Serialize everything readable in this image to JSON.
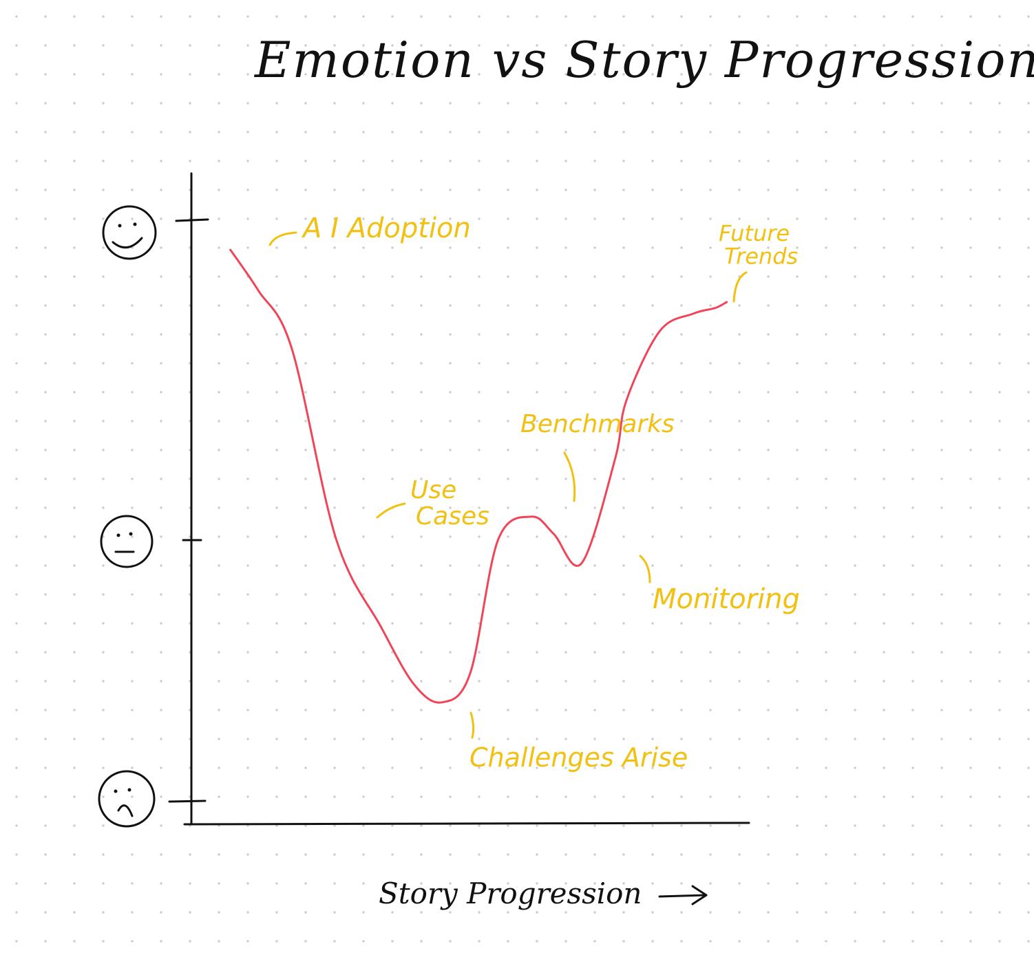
{
  "chart_data": {
    "type": "line",
    "title": "Emotion vs Story Progression",
    "xlabel": "Story Progression",
    "ylabel": "",
    "y_scale": [
      "sad-face-icon",
      "neutral-face-icon",
      "happy-face-icon"
    ],
    "ylim": [
      0,
      100
    ],
    "xlim": [
      0,
      100
    ],
    "grid": false,
    "colors": {
      "line": "#f04458",
      "annotation": "#f2c010",
      "ink": "#111111"
    },
    "series": [
      {
        "x": [
          7,
          12,
          18,
          26,
          34,
          40,
          45,
          50,
          55,
          61,
          65,
          70,
          76,
          78,
          84,
          90,
          94,
          96
        ],
        "y": [
          95,
          88,
          78,
          45,
          30,
          20,
          17,
          22,
          45,
          49,
          46,
          41,
          59,
          69,
          81,
          84,
          85,
          86
        ]
      }
    ],
    "annotations": [
      {
        "text": "A I Adoption",
        "x": 12,
        "y": 88
      },
      {
        "text": "Use Cases",
        "x": 34,
        "y": 45
      },
      {
        "text": "Challenges Arise",
        "x": 52,
        "y": 17
      },
      {
        "text": "Benchmarks",
        "x": 70,
        "y": 49
      },
      {
        "text": "Monitoring",
        "x": 81,
        "y": 41
      },
      {
        "text": "Future Trends",
        "x": 96,
        "y": 86
      }
    ]
  }
}
